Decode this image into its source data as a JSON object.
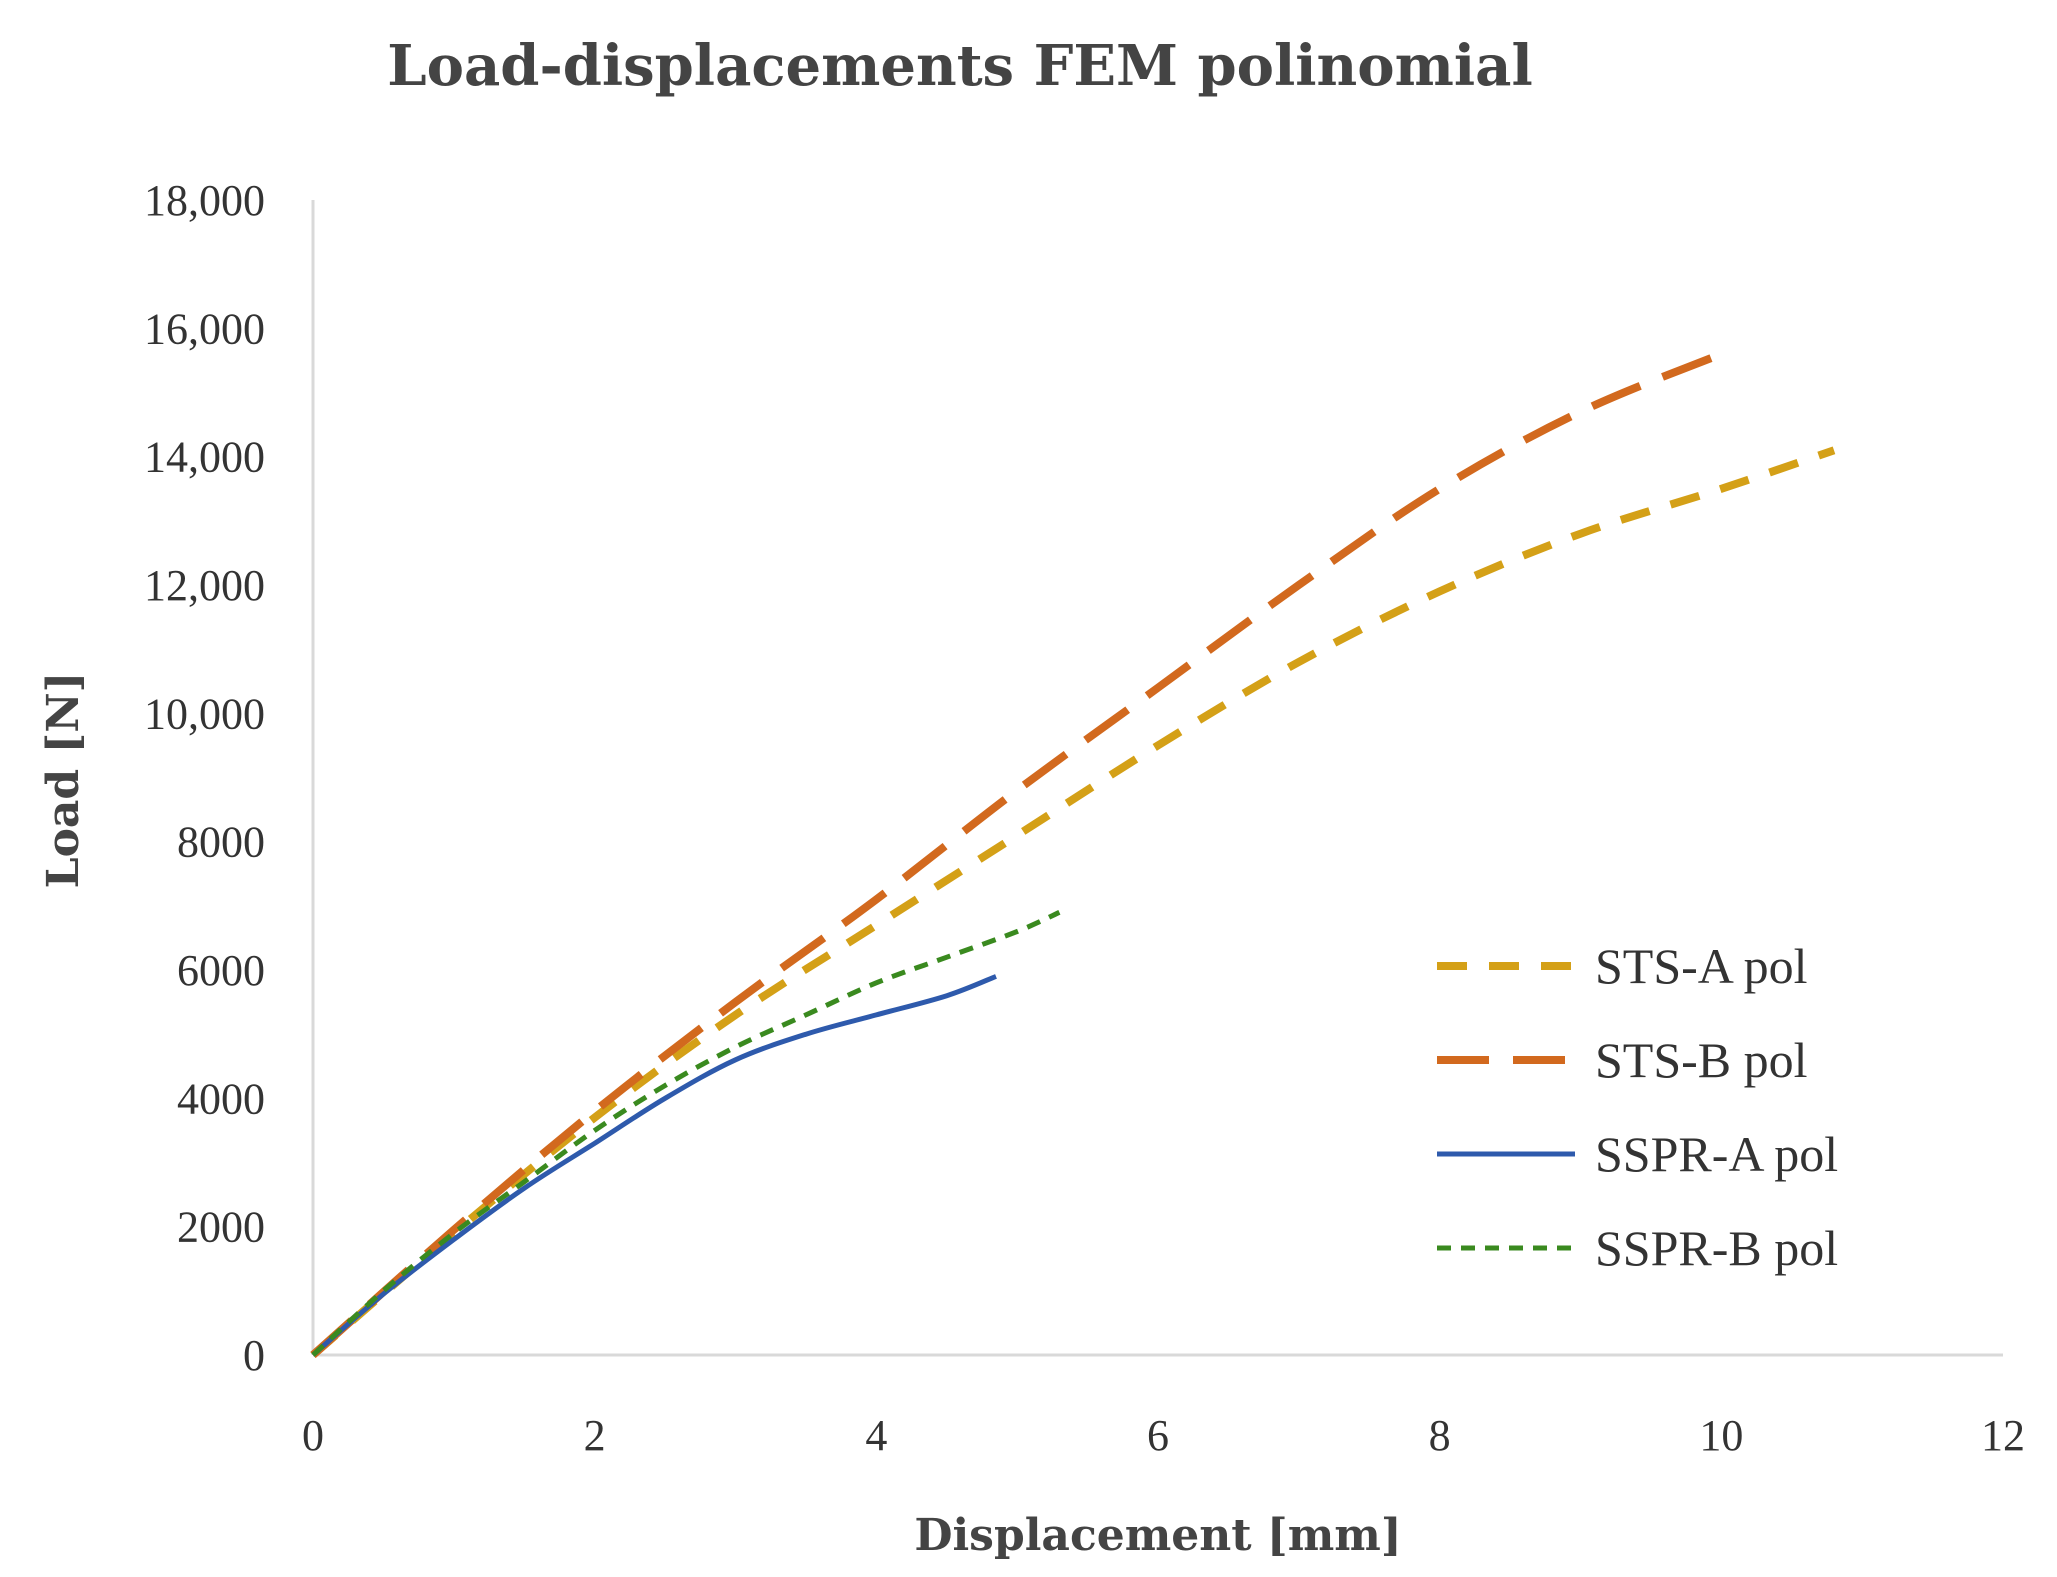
{
  "chart_data": {
    "type": "line",
    "title": "Load-displacements  FEM polinomial",
    "xlabel": "Displacement [mm]",
    "ylabel": "Load [N]",
    "xlim": [
      0,
      12
    ],
    "ylim": [
      0,
      18000
    ],
    "x_ticks": [
      0,
      2,
      4,
      6,
      8,
      10,
      12
    ],
    "x_tick_labels": [
      "0",
      "2",
      "4",
      "6",
      "8",
      "10",
      "12"
    ],
    "y_ticks": [
      0,
      2000,
      4000,
      6000,
      8000,
      10000,
      12000,
      14000,
      16000,
      18000
    ],
    "y_tick_labels": [
      "0",
      "2000",
      "4000",
      "6000",
      "8000",
      "10,000",
      "12,000",
      "14,000",
      "16,000",
      "18,000"
    ],
    "grid": false,
    "legend_position": "right",
    "series": [
      {
        "name": "STS-A pol",
        "color": "#D4A017",
        "style": "dash-medium",
        "x": [
          0,
          1,
          2,
          3,
          4,
          5,
          6,
          7,
          8,
          9,
          10,
          10.8
        ],
        "y": [
          0,
          1900,
          3700,
          5300,
          6700,
          8100,
          9500,
          10800,
          11900,
          12800,
          13500,
          14100
        ]
      },
      {
        "name": "STS-B pol",
        "color": "#D2691E",
        "style": "dash-long",
        "x": [
          0,
          1,
          2,
          3,
          4,
          5,
          6,
          7,
          8,
          9,
          10
        ],
        "y": [
          0,
          1950,
          3800,
          5500,
          7100,
          8800,
          10400,
          12000,
          13500,
          14700,
          15600
        ]
      },
      {
        "name": "SSPR-A pol",
        "color": "#2E5AAC",
        "style": "solid",
        "x": [
          0,
          0.5,
          1,
          1.5,
          2,
          2.5,
          3,
          3.5,
          4,
          4.5,
          4.85
        ],
        "y": [
          0,
          950,
          1800,
          2600,
          3300,
          4000,
          4600,
          5000,
          5300,
          5600,
          5900
        ]
      },
      {
        "name": "SSPR-B pol",
        "color": "#3A8A1F",
        "style": "dash-short",
        "x": [
          0,
          0.5,
          1,
          1.5,
          2,
          2.5,
          3,
          3.5,
          4,
          4.5,
          5,
          5.3
        ],
        "y": [
          0,
          1000,
          1900,
          2700,
          3500,
          4200,
          4800,
          5300,
          5800,
          6200,
          6600,
          6900
        ]
      }
    ]
  }
}
